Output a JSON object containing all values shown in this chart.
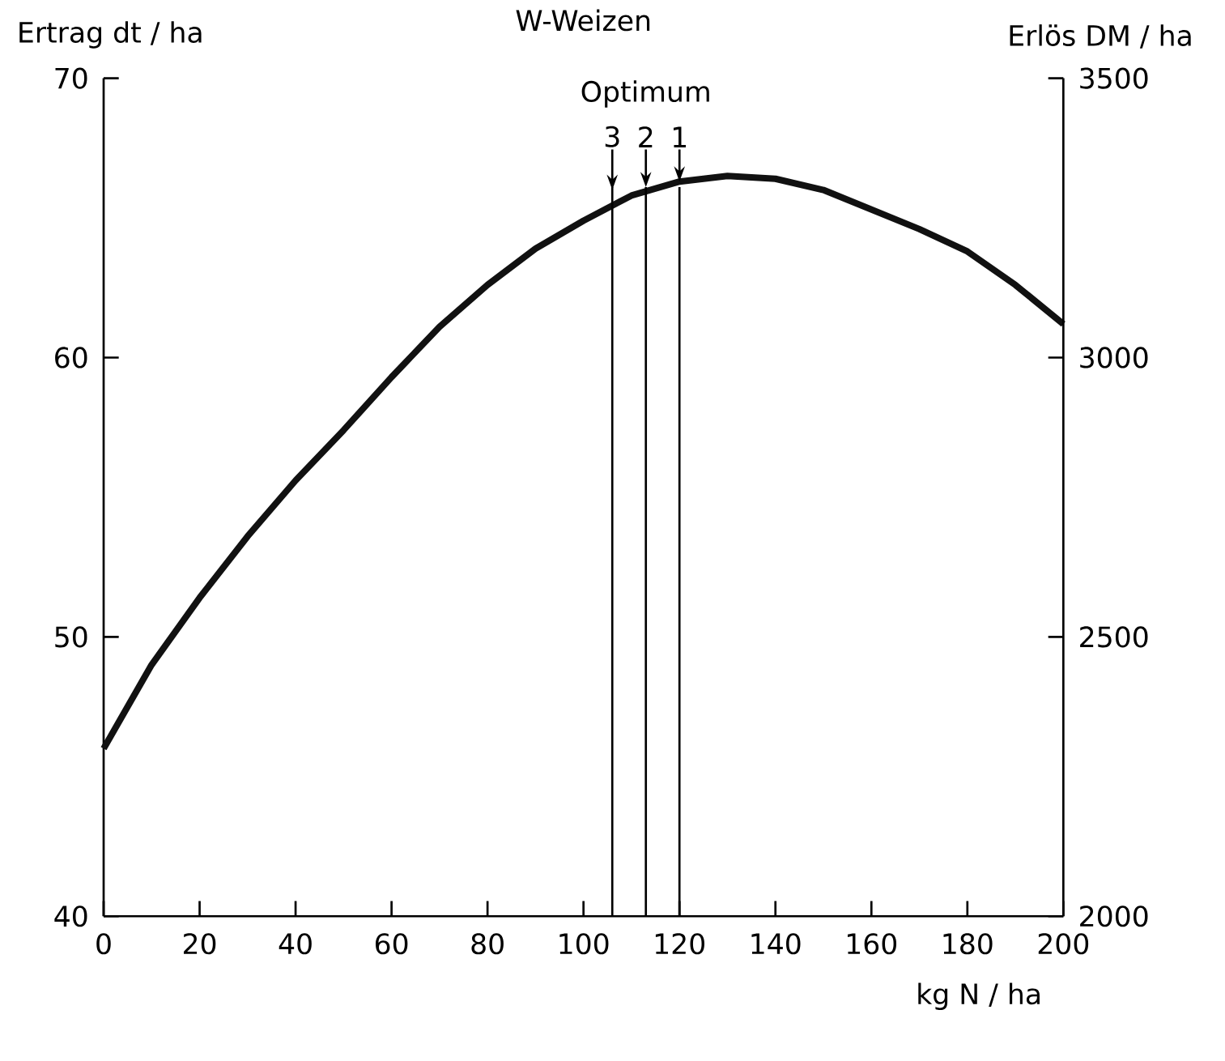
{
  "chart_data": {
    "type": "line",
    "title": "W-Weizen",
    "xlabel": "kg N / ha",
    "ylabel": "Ertrag dt / ha",
    "y2label": "Erlös DM / ha",
    "series": [
      {
        "color": "#111111",
        "x": [
          0,
          10,
          20,
          30,
          40,
          50,
          60,
          70,
          80,
          90,
          100,
          110,
          120,
          130,
          140,
          150,
          160,
          170,
          180,
          190,
          200
        ],
        "values": [
          46.0,
          49.0,
          51.4,
          53.6,
          55.6,
          57.4,
          59.3,
          61.1,
          62.6,
          63.9,
          64.9,
          65.8,
          66.3,
          66.5,
          66.4,
          66.0,
          65.3,
          64.6,
          63.8,
          62.6,
          61.2
        ]
      }
    ],
    "xlim": [
      0,
      200
    ],
    "ylim": [
      40,
      70
    ],
    "y2lim": [
      2000,
      3500
    ],
    "xticks": [
      0,
      20,
      40,
      60,
      80,
      100,
      120,
      140,
      160,
      180,
      200
    ],
    "yticks": [
      40,
      50,
      60,
      70
    ],
    "y2ticks": [
      2000,
      2500,
      3000,
      3500
    ],
    "ref_lines": [
      {
        "axis": "x",
        "value": 106
      },
      {
        "axis": "x",
        "value": 113
      },
      {
        "axis": "x",
        "value": 120
      }
    ],
    "annotations": [
      "Optimum",
      {
        "text": "3",
        "x": 106,
        "y": 66.0
      },
      {
        "text": "2",
        "x": 113,
        "y": 66.1
      },
      {
        "text": "1",
        "x": 120,
        "y": 66.3
      }
    ]
  }
}
